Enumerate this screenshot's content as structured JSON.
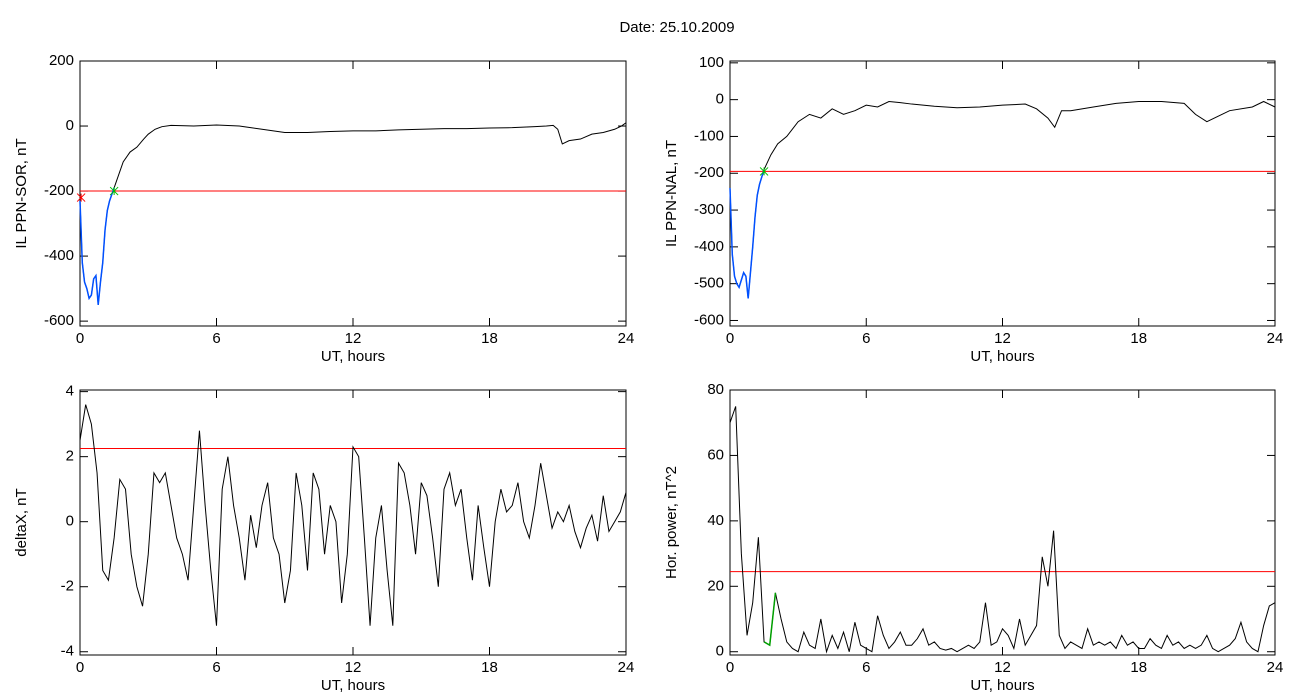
{
  "title": "Date:  25.10.2009",
  "chart_data": [
    {
      "type": "line",
      "ylabel": "IL PPN-SOR, nT",
      "xlabel": "UT, hours",
      "xlim": [
        0,
        24
      ],
      "xticks": [
        0,
        6,
        12,
        18,
        24
      ],
      "ylim": [
        -615,
        200
      ],
      "yticks": [
        -600,
        -400,
        -200,
        0,
        200
      ],
      "x": [
        0,
        0.1,
        0.2,
        0.3,
        0.4,
        0.5,
        0.6,
        0.7,
        0.8,
        0.9,
        1.0,
        1.1,
        1.2,
        1.3,
        1.4,
        1.5,
        1.7,
        1.9,
        2.2,
        2.5,
        2.8,
        3.0,
        3.3,
        3.6,
        4,
        5,
        6,
        7,
        8,
        9,
        10,
        11,
        12,
        13,
        14,
        15,
        16,
        17,
        18,
        19,
        20,
        20.5,
        20.8,
        21.0,
        21.2,
        21.5,
        22,
        22.5,
        23,
        23.5,
        23.8,
        24
      ],
      "series": [
        {
          "color": "#000000",
          "values": [
            -230,
            -420,
            -480,
            -500,
            -530,
            -520,
            -470,
            -460,
            -550,
            -480,
            -420,
            -320,
            -260,
            -230,
            -210,
            -190,
            -150,
            -110,
            -80,
            -65,
            -40,
            -25,
            -10,
            -2,
            2,
            0,
            3,
            0,
            -10,
            -20,
            -20,
            -17,
            -15,
            -15,
            -12,
            -10,
            -8,
            -8,
            -6,
            -5,
            -2,
            0,
            2,
            -10,
            -55,
            -45,
            -40,
            -25,
            -20,
            -10,
            0,
            10
          ]
        }
      ],
      "highlight": {
        "xlim": [
          0,
          1.5
        ],
        "color": "#0050ff"
      },
      "hlines": [
        {
          "value": -200,
          "color": "#ff0000"
        }
      ],
      "markers": [
        {
          "x": 1.5,
          "y": -200,
          "color": "#00c000"
        },
        {
          "x": 0.05,
          "y": -220,
          "color": "#ff0000"
        }
      ]
    },
    {
      "type": "line",
      "ylabel": "IL PPN-NAL, nT",
      "xlabel": "UT, hours",
      "xlim": [
        0,
        24
      ],
      "xticks": [
        0,
        6,
        12,
        18,
        24
      ],
      "ylim": [
        -615,
        105
      ],
      "yticks": [
        -600,
        -500,
        -400,
        -300,
        -200,
        -100,
        0,
        100
      ],
      "x": [
        0,
        0.1,
        0.2,
        0.3,
        0.4,
        0.5,
        0.6,
        0.7,
        0.8,
        0.9,
        1.0,
        1.1,
        1.2,
        1.3,
        1.4,
        1.5,
        1.8,
        2.1,
        2.5,
        3,
        3.5,
        4,
        4.5,
        5,
        5.5,
        6,
        6.5,
        7,
        7.5,
        8,
        9,
        10,
        11,
        12,
        13,
        13.5,
        14,
        14.3,
        14.6,
        15,
        16,
        17,
        18,
        19,
        20,
        20.5,
        21,
        21.5,
        22,
        23,
        23.5,
        24
      ],
      "series": [
        {
          "color": "#000000",
          "values": [
            -240,
            -420,
            -480,
            -500,
            -510,
            -490,
            -470,
            -480,
            -540,
            -470,
            -400,
            -320,
            -260,
            -230,
            -210,
            -190,
            -150,
            -120,
            -100,
            -60,
            -40,
            -50,
            -25,
            -40,
            -30,
            -15,
            -20,
            -5,
            -8,
            -12,
            -18,
            -22,
            -20,
            -15,
            -12,
            -25,
            -50,
            -75,
            -30,
            -30,
            -20,
            -10,
            -5,
            -5,
            -10,
            -40,
            -60,
            -45,
            -30,
            -20,
            -5,
            -20
          ]
        }
      ],
      "highlight": {
        "xlim": [
          0,
          1.5
        ],
        "color": "#0050ff"
      },
      "hlines": [
        {
          "value": -195,
          "color": "#ff0000"
        }
      ],
      "markers": [
        {
          "x": 1.5,
          "y": -195,
          "color": "#00c000"
        }
      ]
    },
    {
      "type": "line",
      "ylabel": "deltaX, nT",
      "xlabel": "UT, hours",
      "xlim": [
        0,
        24
      ],
      "xticks": [
        0,
        6,
        12,
        18,
        24
      ],
      "ylim": [
        -4.1,
        4.05
      ],
      "yticks": [
        -4,
        -2,
        0,
        2,
        4
      ],
      "x": [
        0,
        0.25,
        0.5,
        0.75,
        1,
        1.25,
        1.5,
        1.75,
        2,
        2.25,
        2.5,
        2.75,
        3,
        3.25,
        3.5,
        3.75,
        4,
        4.25,
        4.5,
        4.75,
        5,
        5.25,
        5.5,
        5.75,
        6,
        6.25,
        6.5,
        6.75,
        7,
        7.25,
        7.5,
        7.75,
        8,
        8.25,
        8.5,
        8.75,
        9,
        9.25,
        9.5,
        9.75,
        10,
        10.25,
        10.5,
        10.75,
        11,
        11.25,
        11.5,
        11.75,
        12,
        12.25,
        12.5,
        12.75,
        13,
        13.25,
        13.5,
        13.75,
        14,
        14.25,
        14.5,
        14.75,
        15,
        15.25,
        15.5,
        15.75,
        16,
        16.25,
        16.5,
        16.75,
        17,
        17.25,
        17.5,
        17.75,
        18,
        18.25,
        18.5,
        18.75,
        19,
        19.25,
        19.5,
        19.75,
        20,
        20.25,
        20.5,
        20.75,
        21,
        21.25,
        21.5,
        21.75,
        22,
        22.25,
        22.5,
        22.75,
        23,
        23.25,
        23.5,
        23.75,
        24
      ],
      "series": [
        {
          "color": "#000000",
          "values": [
            2.5,
            3.6,
            3.0,
            1.5,
            -1.5,
            -1.8,
            -0.5,
            1.3,
            1.0,
            -1.0,
            -2.0,
            -2.6,
            -1.0,
            1.5,
            1.2,
            1.5,
            0.5,
            -0.5,
            -1.0,
            -1.8,
            0.5,
            2.8,
            0.5,
            -1.5,
            -3.2,
            1.0,
            2.0,
            0.5,
            -0.5,
            -1.8,
            0.2,
            -0.8,
            0.5,
            1.2,
            -0.5,
            -1.0,
            -2.5,
            -1.5,
            1.5,
            0.5,
            -1.5,
            1.5,
            1.0,
            -1.0,
            0.5,
            0.0,
            -2.5,
            -1.0,
            2.3,
            2.0,
            -0.5,
            -3.2,
            -0.5,
            0.5,
            -1.5,
            -3.2,
            1.8,
            1.5,
            0.5,
            -1.0,
            1.2,
            0.8,
            -0.5,
            -2.0,
            1.0,
            1.5,
            0.5,
            1.0,
            -0.5,
            -1.8,
            0.5,
            -0.8,
            -2.0,
            0.0,
            1.0,
            0.3,
            0.5,
            1.2,
            0.0,
            -0.5,
            0.5,
            1.8,
            0.8,
            -0.2,
            0.3,
            0.0,
            0.5,
            -0.3,
            -0.8,
            -0.2,
            0.2,
            -0.6,
            0.8,
            -0.3,
            0.0,
            0.3,
            0.9
          ]
        }
      ],
      "hlines": [
        {
          "value": 2.25,
          "color": "#ff0000"
        }
      ]
    },
    {
      "type": "line",
      "ylabel": "Hor. power, nT^2",
      "xlabel": "UT, hours",
      "xlim": [
        0,
        24
      ],
      "xticks": [
        0,
        6,
        12,
        18,
        24
      ],
      "ylim": [
        -1,
        80
      ],
      "yticks": [
        0,
        20,
        40,
        60,
        80
      ],
      "x": [
        0,
        0.25,
        0.5,
        0.75,
        1,
        1.25,
        1.5,
        1.75,
        2,
        2.25,
        2.5,
        2.75,
        3,
        3.25,
        3.5,
        3.75,
        4,
        4.25,
        4.5,
        4.75,
        5,
        5.25,
        5.5,
        5.75,
        6,
        6.25,
        6.5,
        6.75,
        7,
        7.25,
        7.5,
        7.75,
        8,
        8.25,
        8.5,
        8.75,
        9,
        9.25,
        9.5,
        9.75,
        10,
        10.25,
        10.5,
        10.75,
        11,
        11.25,
        11.5,
        11.75,
        12,
        12.25,
        12.5,
        12.75,
        13,
        13.25,
        13.5,
        13.75,
        14,
        14.25,
        14.5,
        14.75,
        15,
        15.25,
        15.5,
        15.75,
        16,
        16.25,
        16.5,
        16.75,
        17,
        17.25,
        17.5,
        17.75,
        18,
        18.25,
        18.5,
        18.75,
        19,
        19.25,
        19.5,
        19.75,
        20,
        20.25,
        20.5,
        20.75,
        21,
        21.25,
        21.5,
        21.75,
        22,
        22.25,
        22.5,
        22.75,
        23,
        23.25,
        23.5,
        23.75,
        24
      ],
      "series": [
        {
          "color": "#000000",
          "values": [
            70,
            75,
            30,
            5,
            15,
            35,
            3,
            2,
            18,
            10,
            3,
            1,
            0,
            6,
            2,
            1,
            10,
            0,
            5,
            1,
            6,
            0,
            9,
            2,
            1,
            0,
            11,
            5,
            1,
            3,
            6,
            2,
            2,
            4,
            7,
            2,
            3,
            1,
            0.5,
            1,
            0,
            1,
            2,
            1,
            3,
            15,
            2,
            3,
            7,
            5,
            1,
            10,
            2,
            5,
            8,
            29,
            20,
            37,
            5,
            1,
            3,
            2,
            1,
            7,
            2,
            3,
            2,
            3,
            1,
            5,
            2,
            3,
            1,
            1,
            4,
            2,
            1,
            5,
            2,
            3,
            1,
            2,
            1,
            2,
            5,
            1,
            0,
            1,
            2,
            4,
            9,
            3,
            1,
            0,
            8,
            14,
            15
          ]
        }
      ],
      "highlight": {
        "xlim": [
          1.5,
          2
        ],
        "color": "#00a000"
      },
      "hlines": [
        {
          "value": 24.5,
          "color": "#ff0000"
        }
      ]
    }
  ]
}
